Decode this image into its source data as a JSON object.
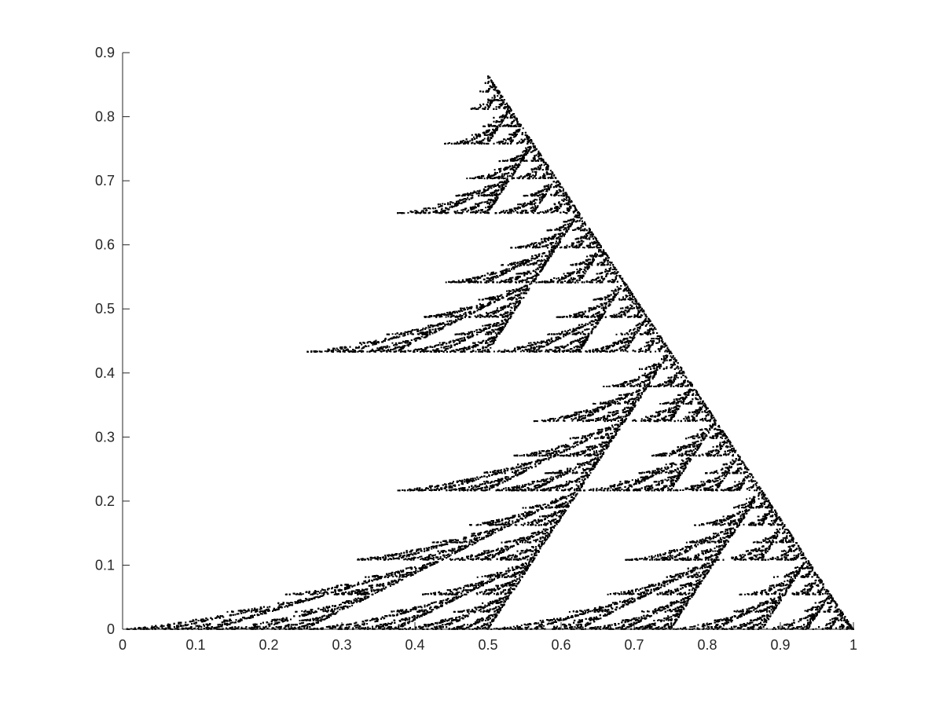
{
  "chart_data": {
    "type": "scatter",
    "title": "",
    "xlabel": "",
    "ylabel": "",
    "xlim": [
      0,
      1
    ],
    "ylim": [
      0,
      0.9
    ],
    "grid": false,
    "x_ticks": [
      "0",
      "0.1",
      "0.2",
      "0.3",
      "0.4",
      "0.5",
      "0.6",
      "0.7",
      "0.8",
      "0.9",
      "1"
    ],
    "y_ticks": [
      "0",
      "0.1",
      "0.2",
      "0.3",
      "0.4",
      "0.5",
      "0.6",
      "0.7",
      "0.8",
      "0.9"
    ],
    "marker_color": "#000000",
    "series": [
      {
        "description_points": "fractal attractor points; outer envelope vertices",
        "x": [
          0,
          0.5,
          1
        ],
        "y": [
          0,
          0.866,
          0
        ]
      }
    ]
  }
}
